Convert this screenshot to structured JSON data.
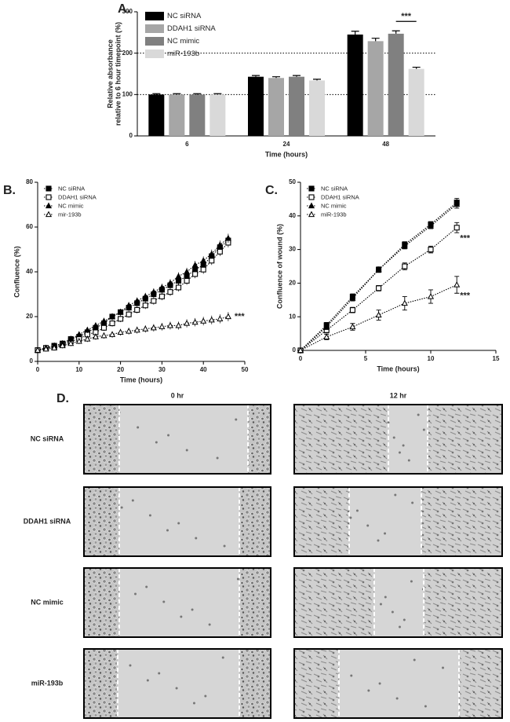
{
  "chart_data": [
    {
      "panel": "A.",
      "type": "bar",
      "ylabel": [
        "Relative absorbance",
        "relative to 6 hour timepoint (%)"
      ],
      "xlabel": "Time (hours)",
      "categories": [
        "6",
        "24",
        "48"
      ],
      "series": [
        {
          "name": "NC siRNA",
          "color": "#000000",
          "values": [
            100,
            143,
            245
          ],
          "errors": [
            2,
            3,
            8
          ]
        },
        {
          "name": "DDAH1 siRNA",
          "color": "#a6a6a6",
          "values": [
            100,
            140,
            229
          ],
          "errors": [
            2,
            3,
            7
          ]
        },
        {
          "name": "NC mimic",
          "color": "#808080",
          "values": [
            100,
            143,
            247
          ],
          "errors": [
            2,
            3,
            7
          ]
        },
        {
          "name": "miR-193b",
          "color": "#d9d9d9",
          "values": [
            100,
            134,
            162
          ],
          "errors": [
            2,
            3,
            4
          ]
        }
      ],
      "ylim": [
        0,
        300
      ],
      "yticks": [
        0,
        100,
        200,
        300
      ],
      "reference_lines": [
        100,
        200
      ],
      "annotation": "***"
    },
    {
      "panel": "B.",
      "type": "line",
      "xlabel": "Time (hours)",
      "ylabel": "Confluence (%)",
      "x": [
        0,
        2,
        4,
        6,
        8,
        10,
        12,
        14,
        16,
        18,
        20,
        22,
        24,
        26,
        28,
        30,
        32,
        34,
        36,
        38,
        40,
        42,
        44,
        46
      ],
      "series": [
        {
          "name": "NC siRNA",
          "color": "#000000",
          "marker": "square",
          "values": [
            5,
            6,
            7,
            8,
            10,
            11,
            13,
            15,
            17,
            20,
            22,
            24,
            26,
            28,
            30,
            32,
            34,
            36,
            38,
            41,
            43,
            47,
            51,
            54
          ]
        },
        {
          "name": "DDAH1 siRNA",
          "color": "#000000",
          "marker": "open-square",
          "values": [
            5,
            6,
            6.5,
            7.5,
            9,
            10,
            12,
            13,
            15,
            17,
            19,
            21,
            23,
            25,
            27,
            29,
            31,
            33,
            36,
            39,
            41,
            45,
            49,
            53
          ]
        },
        {
          "name": "NC mimic",
          "color": "#000000",
          "marker": "triangle",
          "values": [
            5,
            6,
            7,
            8,
            10,
            12,
            14,
            16,
            18,
            20,
            22,
            25,
            27,
            29,
            31,
            33,
            35,
            38,
            40,
            43,
            45,
            48,
            52,
            55
          ]
        },
        {
          "name": "mir-193b",
          "color": "#000000",
          "marker": "open-triangle",
          "values": [
            5,
            5.5,
            6,
            7,
            8,
            9,
            10,
            11,
            11.5,
            12,
            13,
            13.5,
            14,
            14.5,
            15,
            15.5,
            16,
            16,
            17,
            17.5,
            18,
            18.5,
            19,
            20
          ]
        }
      ],
      "xlim": [
        0,
        50
      ],
      "xticks": [
        0,
        10,
        20,
        30,
        40,
        50
      ],
      "ylim": [
        0,
        80
      ],
      "yticks": [
        0,
        20,
        40,
        60,
        80
      ],
      "annotations": [
        "***"
      ]
    },
    {
      "panel": "C.",
      "type": "line",
      "xlabel": "Time (hours)",
      "ylabel": "Confluence of wound (%)",
      "x": [
        0,
        2,
        4,
        6,
        8,
        10,
        12
      ],
      "series": [
        {
          "name": "NC siRNA",
          "color": "#000000",
          "marker": "square",
          "values": [
            0,
            7.5,
            16,
            24,
            31.5,
            37.5,
            44
          ],
          "errors": [
            0,
            0.8,
            0.8,
            0.8,
            0.8,
            0.8,
            1.2
          ]
        },
        {
          "name": "DDAH1 siRNA",
          "color": "#000000",
          "marker": "open-square",
          "values": [
            0,
            6,
            12,
            18.5,
            25,
            30,
            36.5
          ],
          "errors": [
            0,
            0.8,
            0.8,
            0.8,
            1,
            1,
            1.5
          ]
        },
        {
          "name": "NC mimic",
          "color": "#000000",
          "marker": "triangle",
          "values": [
            0,
            7,
            15.5,
            24,
            31,
            37,
            43.5
          ],
          "errors": [
            0,
            0.8,
            0.8,
            0.8,
            0.8,
            0.8,
            1.2
          ]
        },
        {
          "name": "miR-193b",
          "color": "#000000",
          "marker": "open-triangle",
          "values": [
            0,
            4,
            7,
            10.5,
            14,
            16,
            19.5
          ],
          "errors": [
            0,
            0.8,
            1,
            1.5,
            2,
            2,
            2.5
          ]
        }
      ],
      "xlim": [
        0,
        15
      ],
      "xticks": [
        0,
        5,
        10,
        15
      ],
      "ylim": [
        0,
        50
      ],
      "yticks": [
        0,
        10,
        20,
        30,
        40,
        50
      ],
      "annotations": [
        "***",
        "***"
      ]
    }
  ],
  "panel_d": {
    "label": "D.",
    "columns": [
      "0 hr",
      "12 hr"
    ],
    "rows": [
      "NC siRNA",
      "DDAH1 siRNA",
      "NC mimic",
      "miR-193b"
    ]
  }
}
